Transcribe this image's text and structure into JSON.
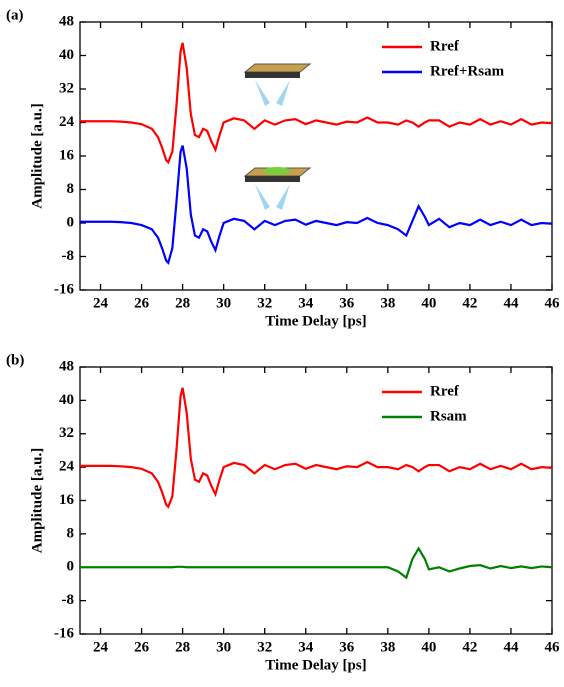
{
  "chart_data": [
    {
      "type": "line",
      "panel_label": "(a)",
      "xlabel": "Time Delay [ps]",
      "ylabel": "Amplitude [a.u.]",
      "x": [
        23,
        23.5,
        24,
        24.5,
        25,
        25.5,
        26,
        26.5,
        26.8,
        27,
        27.2,
        27.3,
        27.5,
        27.7,
        27.9,
        28,
        28.2,
        28.4,
        28.6,
        28.8,
        29,
        29.2,
        29.4,
        29.6,
        29.8,
        30,
        30.5,
        31,
        31.5,
        32,
        32.5,
        33,
        33.5,
        34,
        34.5,
        35,
        35.5,
        36,
        36.5,
        37,
        37.5,
        38,
        38.5,
        38.9,
        39.2,
        39.5,
        39.8,
        40,
        40.5,
        41,
        41.5,
        42,
        42.5,
        43,
        43.5,
        44,
        44.5,
        45,
        45.5,
        46
      ],
      "series": [
        {
          "name": "Rref",
          "color": "#ff0000",
          "values": [
            24.3,
            24.3,
            24.3,
            24.3,
            24.2,
            24,
            23.6,
            22.5,
            20.5,
            18,
            15,
            14.5,
            17,
            28,
            41,
            43,
            37,
            26,
            21,
            20.5,
            22.5,
            22,
            19.5,
            17.5,
            21,
            24,
            25,
            24.5,
            22.5,
            24.5,
            23.5,
            24.5,
            24.8,
            23.6,
            24.5,
            24,
            23.5,
            24.2,
            24,
            25.2,
            24,
            24,
            23.5,
            24.5,
            24,
            23,
            24,
            24.5,
            24.5,
            23,
            24,
            23.5,
            24.8,
            23.5,
            24.3,
            23.5,
            24.8,
            23.5,
            24,
            23.8
          ]
        },
        {
          "name": "Rref+Rsam",
          "color": "#0000ff",
          "values": [
            0.3,
            0.3,
            0.3,
            0.3,
            0.2,
            0,
            -0.5,
            -1.5,
            -3.5,
            -6,
            -9,
            -9.5,
            -6,
            5,
            17,
            18.5,
            13,
            2,
            -3,
            -3.5,
            -1.5,
            -2,
            -4.5,
            -6.5,
            -3,
            0,
            1,
            0.5,
            -1.5,
            0.5,
            -0.5,
            0.5,
            0.8,
            -0.4,
            0.5,
            0,
            -0.5,
            0.2,
            0,
            1.2,
            0,
            -0.5,
            -1.5,
            -3,
            0.5,
            4,
            1.5,
            -0.5,
            1,
            -1,
            0,
            -0.5,
            0.8,
            -0.5,
            0.3,
            -0.5,
            0.8,
            -0.5,
            0,
            -0.2
          ]
        }
      ],
      "xlim": [
        23,
        46
      ],
      "ylim": [
        -16,
        48
      ],
      "xticks": [
        24,
        26,
        28,
        30,
        32,
        34,
        36,
        38,
        40,
        42,
        44,
        46
      ],
      "yticks": [
        -16,
        -8,
        0,
        8,
        16,
        24,
        32,
        40,
        48
      ],
      "legend": "upper right"
    },
    {
      "type": "line",
      "panel_label": "(b)",
      "xlabel": "Time Delay [ps]",
      "ylabel": "Amplitude [a.u.]",
      "x": [
        23,
        23.5,
        24,
        24.5,
        25,
        25.5,
        26,
        26.5,
        26.8,
        27,
        27.2,
        27.3,
        27.5,
        27.7,
        27.9,
        28,
        28.2,
        28.4,
        28.6,
        28.8,
        29,
        29.2,
        29.4,
        29.6,
        29.8,
        30,
        30.5,
        31,
        31.5,
        32,
        32.5,
        33,
        33.5,
        34,
        34.5,
        35,
        35.5,
        36,
        36.5,
        37,
        37.5,
        38,
        38.5,
        38.9,
        39.2,
        39.5,
        39.8,
        40,
        40.5,
        41,
        41.5,
        42,
        42.5,
        43,
        43.5,
        44,
        44.5,
        45,
        45.5,
        46
      ],
      "series": [
        {
          "name": "Rref",
          "color": "#ff0000",
          "values": [
            24.3,
            24.3,
            24.3,
            24.3,
            24.2,
            24,
            23.6,
            22.5,
            20.5,
            18,
            15,
            14.5,
            17,
            28,
            41,
            43,
            37,
            26,
            21,
            20.5,
            22.5,
            22,
            19.5,
            17.5,
            21,
            24,
            25,
            24.5,
            22.5,
            24.5,
            23.5,
            24.5,
            24.8,
            23.6,
            24.5,
            24,
            23.5,
            24.2,
            24,
            25.2,
            24,
            24,
            23.5,
            24.5,
            24,
            23,
            24,
            24.5,
            24.5,
            23,
            24,
            23.5,
            24.8,
            23.5,
            24.3,
            23.5,
            24.8,
            23.5,
            24,
            23.8
          ]
        },
        {
          "name": "Rsam",
          "color": "#008000",
          "values": [
            0,
            0,
            0,
            0,
            0,
            0,
            0,
            0,
            0,
            0,
            0,
            0,
            0,
            0.1,
            0.1,
            0.1,
            0,
            0,
            0,
            0,
            0,
            0,
            0,
            0,
            0,
            0,
            0,
            0,
            0,
            0,
            0,
            0,
            0,
            0,
            0,
            0,
            0,
            0,
            0,
            0,
            0,
            0,
            -1,
            -2.5,
            2,
            4.5,
            2,
            -0.5,
            0,
            -1,
            -0.3,
            0.3,
            0.5,
            -0.3,
            0.3,
            -0.2,
            0.2,
            -0.2,
            0.2,
            0
          ]
        }
      ],
      "xlim": [
        23,
        46
      ],
      "ylim": [
        -16,
        48
      ],
      "xticks": [
        24,
        26,
        28,
        30,
        32,
        34,
        36,
        38,
        40,
        42,
        44,
        46
      ],
      "yticks": [
        -16,
        -8,
        0,
        8,
        16,
        24,
        32,
        40,
        48
      ],
      "legend": "upper right"
    }
  ]
}
